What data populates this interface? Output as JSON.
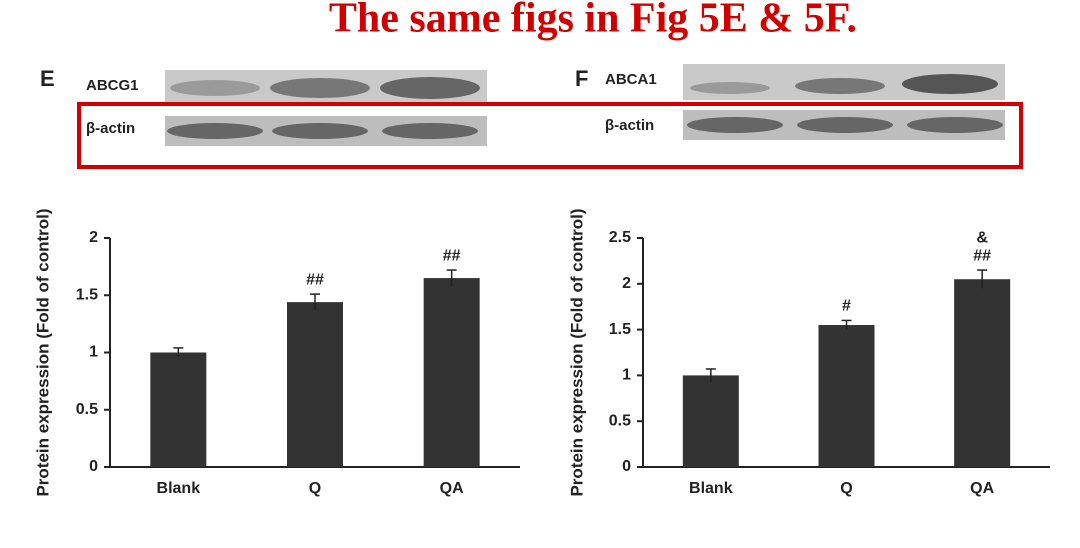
{
  "annotation": "The same figs in Fig 5E & 5F.",
  "chart_data": [
    {
      "type": "bar",
      "panel": "E",
      "blot_labels": [
        "ABCG1",
        "β-actin"
      ],
      "ylabel": "Protein expression (Fold of control)",
      "categories": [
        "Blank",
        "Q",
        "QA"
      ],
      "values": [
        1.0,
        1.44,
        1.65
      ],
      "errors": [
        0.04,
        0.07,
        0.07
      ],
      "significance": [
        null,
        [
          "##"
        ],
        [
          "##"
        ]
      ],
      "color": "#333333",
      "ylim": [
        0,
        2
      ],
      "yticks": [
        0,
        0.5,
        1,
        1.5,
        2
      ]
    },
    {
      "type": "bar",
      "panel": "F",
      "blot_labels": [
        "ABCA1",
        "β-actin"
      ],
      "ylabel": "Protein expression (Fold of control)",
      "categories": [
        "Blank",
        "Q",
        "QA"
      ],
      "values": [
        1.0,
        1.55,
        2.05
      ],
      "errors": [
        0.07,
        0.05,
        0.1
      ],
      "significance": [
        null,
        [
          "#"
        ],
        [
          "&",
          "##"
        ]
      ],
      "color": "#333333",
      "ylim": [
        0,
        2.5
      ],
      "yticks": [
        0,
        0.5,
        1,
        1.5,
        2,
        2.5
      ]
    }
  ]
}
